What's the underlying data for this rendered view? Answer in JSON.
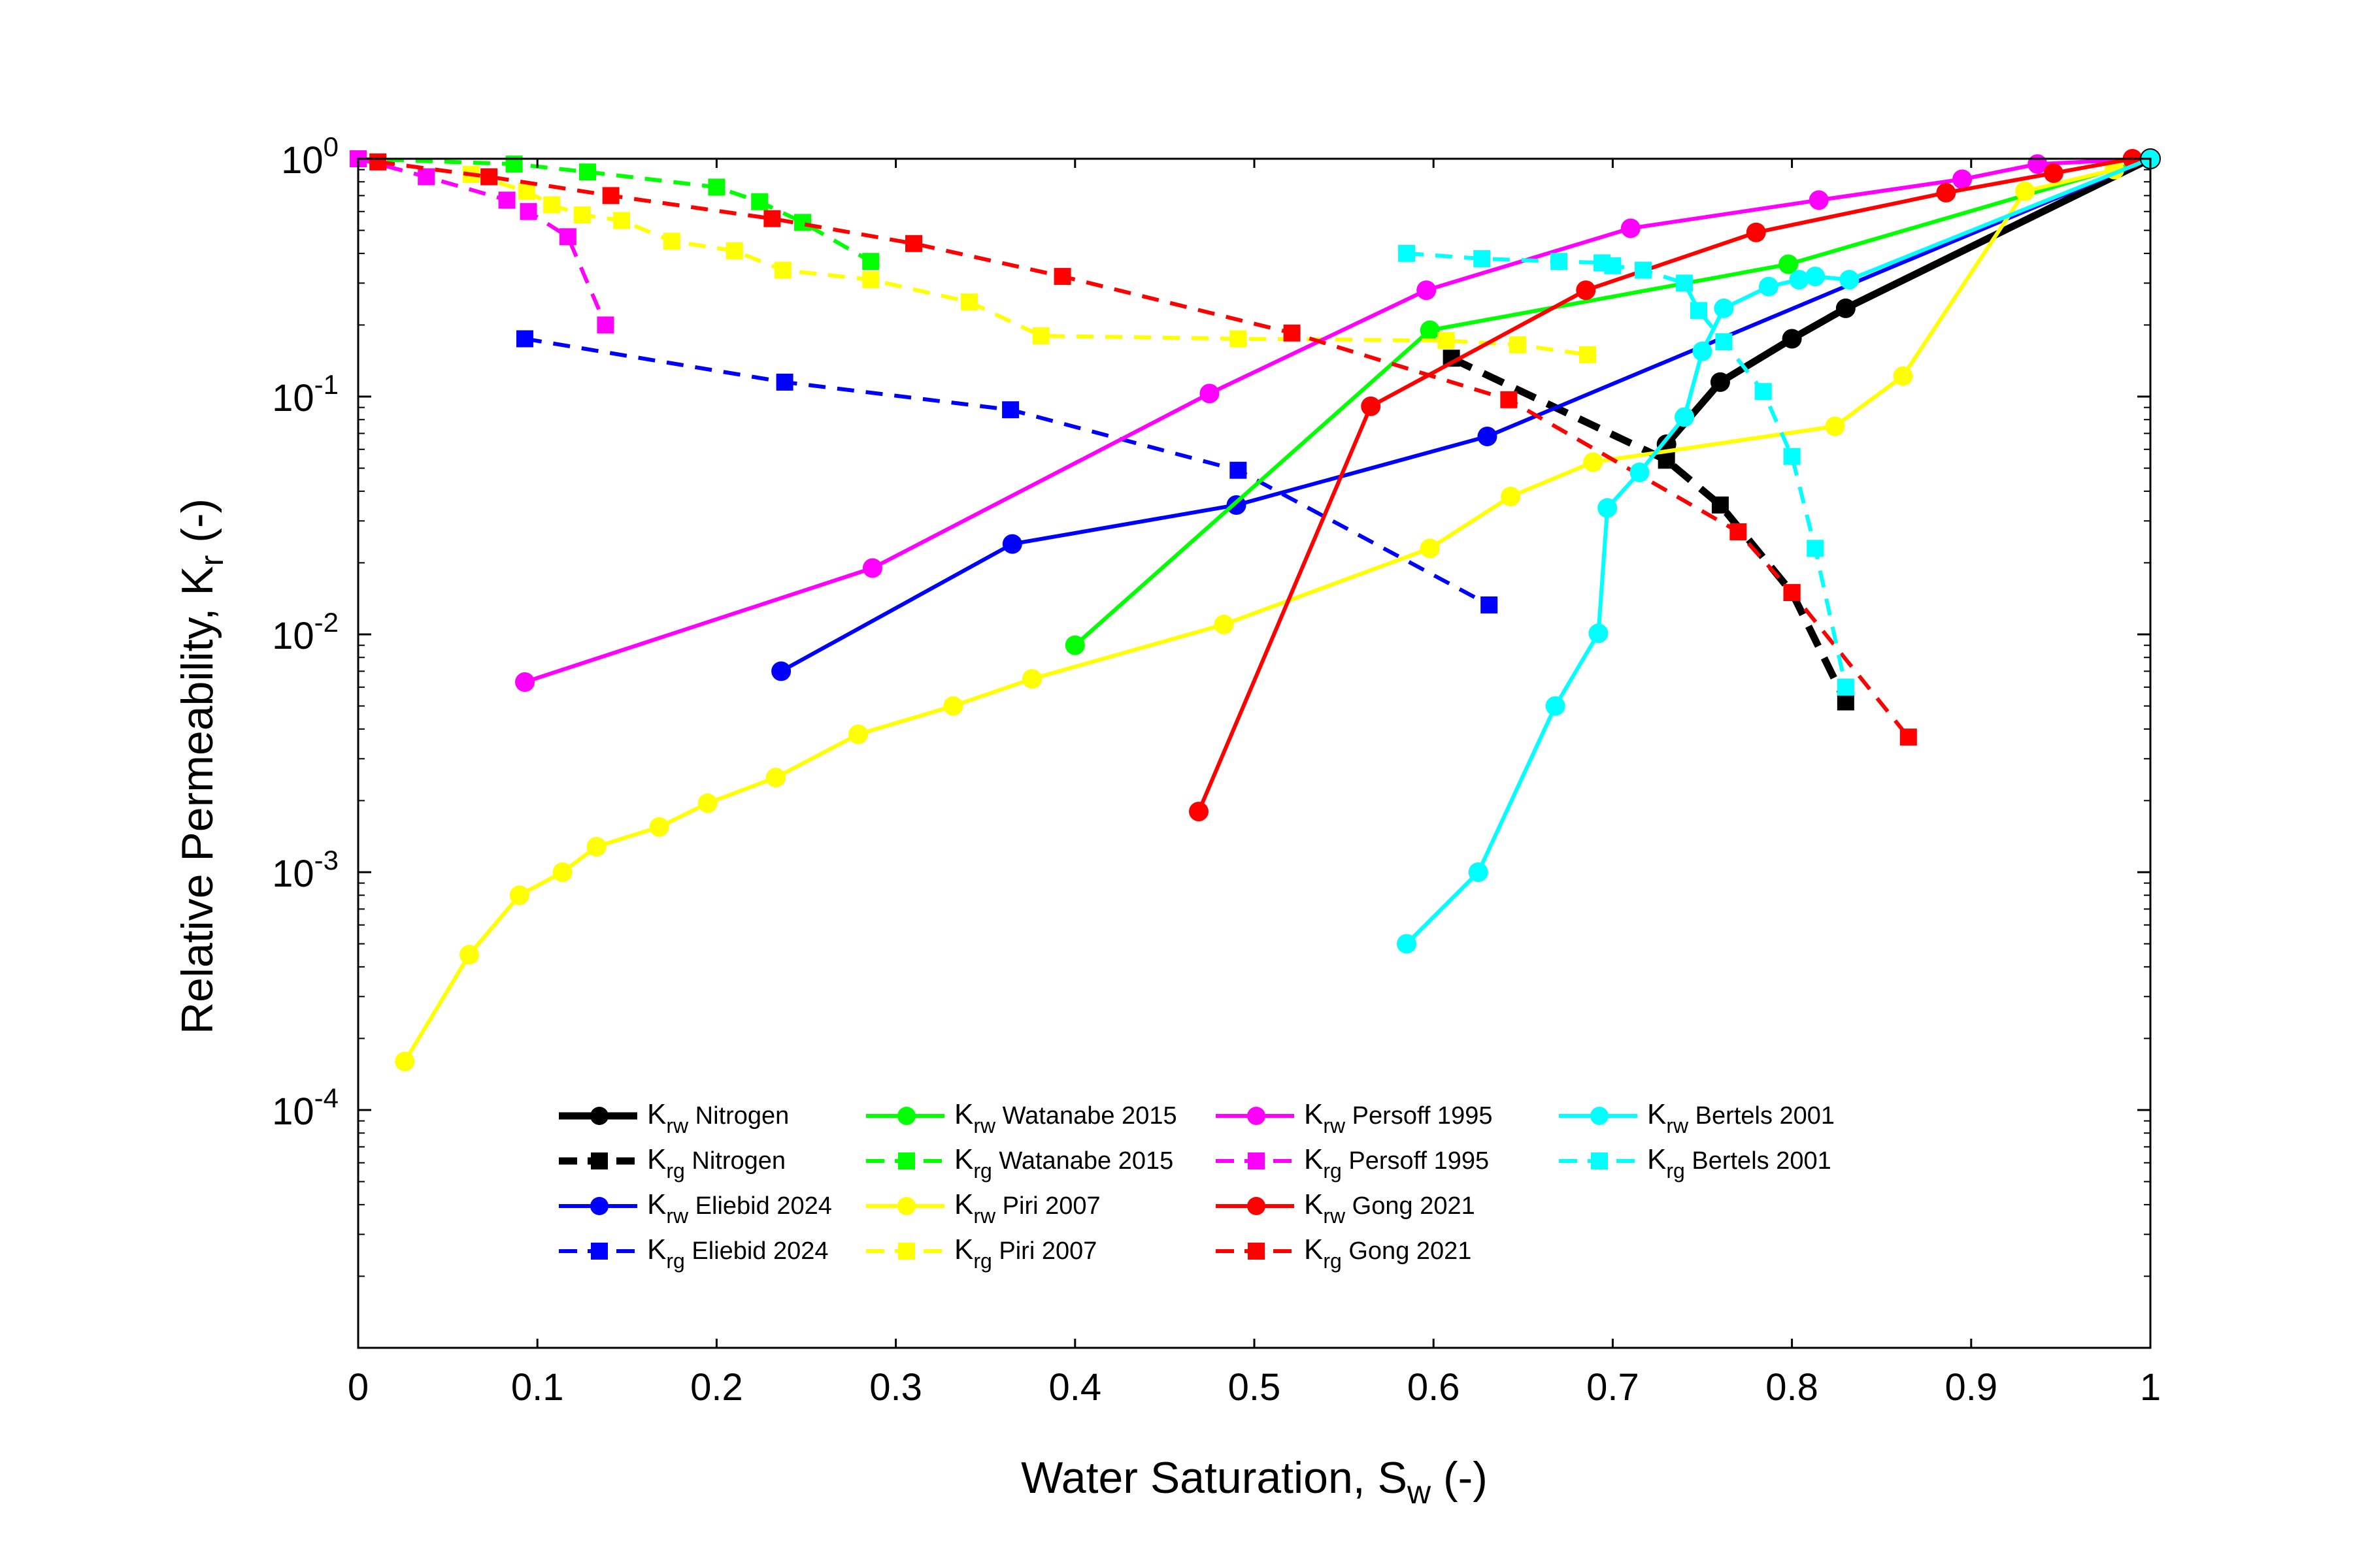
{
  "chart_data": {
    "type": "line",
    "title": "",
    "xlabel": {
      "main": "Water Saturation, S",
      "sub": "w",
      "suffix": " (-)"
    },
    "ylabel": {
      "main": "Relative Permeability, K",
      "sub": "r",
      "suffix": " (-)"
    },
    "xlim": [
      0,
      1
    ],
    "ylim": [
      1e-05,
      1
    ],
    "yscale": "log",
    "grid": false,
    "legend_position": "lower-center",
    "x_ticks": [
      {
        "value": 0,
        "label": "0"
      },
      {
        "value": 0.1,
        "label": "0.1"
      },
      {
        "value": 0.2,
        "label": "0.2"
      },
      {
        "value": 0.3,
        "label": "0.3"
      },
      {
        "value": 0.4,
        "label": "0.4"
      },
      {
        "value": 0.5,
        "label": "0.5"
      },
      {
        "value": 0.6,
        "label": "0.6"
      },
      {
        "value": 0.7,
        "label": "0.7"
      },
      {
        "value": 0.8,
        "label": "0.8"
      },
      {
        "value": 0.9,
        "label": "0.9"
      },
      {
        "value": 1,
        "label": "1"
      }
    ],
    "y_ticks": [
      {
        "value": 1,
        "base": "10",
        "exp": "0"
      },
      {
        "value": 0.1,
        "base": "10",
        "exp": "-1"
      },
      {
        "value": 0.01,
        "base": "10",
        "exp": "-2"
      },
      {
        "value": 0.001,
        "base": "10",
        "exp": "-3"
      },
      {
        "value": 0.0001,
        "base": "10",
        "exp": "-4"
      }
    ],
    "series": [
      {
        "name": "Krw Nitrogen",
        "legend": {
          "sym": "K",
          "sub": "rw",
          "label": "Nitrogen"
        },
        "color": "#000000",
        "dash": false,
        "marker": "circle",
        "thick": true,
        "points": [
          [
            0.73,
            0.063
          ],
          [
            0.76,
            0.115
          ],
          [
            0.8,
            0.175
          ],
          [
            0.83,
            0.235
          ],
          [
            1.0,
            1.0
          ]
        ]
      },
      {
        "name": "Krg Nitrogen",
        "legend": {
          "sym": "K",
          "sub": "rg",
          "label": "Nitrogen"
        },
        "color": "#000000",
        "dash": true,
        "marker": "square",
        "thick": true,
        "points": [
          [
            0.61,
            0.145
          ],
          [
            0.73,
            0.054
          ],
          [
            0.76,
            0.035
          ],
          [
            0.8,
            0.015
          ],
          [
            0.83,
            0.0052
          ]
        ]
      },
      {
        "name": "Krw Eliebid 2024",
        "legend": {
          "sym": "K",
          "sub": "rw",
          "label": "Eliebid 2024"
        },
        "color": "#0000FF",
        "dash": false,
        "marker": "circle",
        "thick": false,
        "points": [
          [
            0.236,
            0.007
          ],
          [
            0.365,
            0.024
          ],
          [
            0.49,
            0.035
          ],
          [
            0.63,
            0.068
          ],
          [
            1.0,
            1.0
          ]
        ]
      },
      {
        "name": "Krg Eliebid 2024",
        "legend": {
          "sym": "K",
          "sub": "rg",
          "label": "Eliebid 2024"
        },
        "color": "#0000FF",
        "dash": true,
        "marker": "square",
        "thick": false,
        "points": [
          [
            0.093,
            0.175
          ],
          [
            0.238,
            0.115
          ],
          [
            0.364,
            0.088
          ],
          [
            0.491,
            0.049
          ],
          [
            0.631,
            0.0133
          ]
        ]
      },
      {
        "name": "Krw Watanabe 2015",
        "legend": {
          "sym": "K",
          "sub": "rw",
          "label": "Watanabe 2015"
        },
        "color": "#00FF00",
        "dash": false,
        "marker": "circle",
        "thick": false,
        "points": [
          [
            0.4,
            0.009
          ],
          [
            0.598,
            0.19
          ],
          [
            0.798,
            0.36
          ],
          [
            1.0,
            1.0
          ]
        ]
      },
      {
        "name": "Krg Watanabe 2015",
        "legend": {
          "sym": "K",
          "sub": "rg",
          "label": "Watanabe 2015"
        },
        "color": "#00FF00",
        "dash": true,
        "marker": "square",
        "thick": false,
        "points": [
          [
            0.0,
            1.0
          ],
          [
            0.087,
            0.95
          ],
          [
            0.128,
            0.88
          ],
          [
            0.2,
            0.76
          ],
          [
            0.224,
            0.66
          ],
          [
            0.248,
            0.54
          ],
          [
            0.286,
            0.37
          ]
        ]
      },
      {
        "name": "Krw Piri 2007",
        "legend": {
          "sym": "K",
          "sub": "rw",
          "label": "Piri 2007"
        },
        "color": "#FFFF00",
        "dash": false,
        "marker": "circle",
        "thick": false,
        "points": [
          [
            0.026,
            0.00016
          ],
          [
            0.062,
            0.00045
          ],
          [
            0.09,
            0.0008
          ],
          [
            0.114,
            0.001
          ],
          [
            0.133,
            0.00128
          ],
          [
            0.168,
            0.00155
          ],
          [
            0.195,
            0.00195
          ],
          [
            0.233,
            0.0025
          ],
          [
            0.279,
            0.0038
          ],
          [
            0.332,
            0.005
          ],
          [
            0.376,
            0.0065
          ],
          [
            0.483,
            0.011
          ],
          [
            0.598,
            0.023
          ],
          [
            0.643,
            0.038
          ],
          [
            0.689,
            0.053
          ],
          [
            0.824,
            0.075
          ],
          [
            0.862,
            0.122
          ],
          [
            0.93,
            0.73
          ],
          [
            0.98,
            0.9
          ]
        ]
      },
      {
        "name": "Krg Piri 2007",
        "legend": {
          "sym": "K",
          "sub": "rg",
          "label": "Piri 2007"
        },
        "color": "#FFFF00",
        "dash": true,
        "marker": "square",
        "thick": false,
        "points": [
          [
            0.063,
            0.86
          ],
          [
            0.094,
            0.73
          ],
          [
            0.108,
            0.64
          ],
          [
            0.125,
            0.58
          ],
          [
            0.147,
            0.55
          ],
          [
            0.175,
            0.45
          ],
          [
            0.21,
            0.41
          ],
          [
            0.237,
            0.34
          ],
          [
            0.286,
            0.31
          ],
          [
            0.341,
            0.25
          ],
          [
            0.381,
            0.18
          ],
          [
            0.491,
            0.175
          ],
          [
            0.607,
            0.172
          ],
          [
            0.647,
            0.165
          ],
          [
            0.686,
            0.15
          ]
        ]
      },
      {
        "name": "Krw Persoff 1995",
        "legend": {
          "sym": "K",
          "sub": "rw",
          "label": "Persoff 1995"
        },
        "color": "#FF00FF",
        "dash": false,
        "marker": "circle",
        "thick": false,
        "points": [
          [
            0.093,
            0.0063
          ],
          [
            0.287,
            0.019
          ],
          [
            0.475,
            0.103
          ],
          [
            0.596,
            0.28
          ],
          [
            0.71,
            0.51
          ],
          [
            0.815,
            0.67
          ],
          [
            0.895,
            0.82
          ],
          [
            0.937,
            0.95
          ],
          [
            1.0,
            1.0
          ]
        ]
      },
      {
        "name": "Krg Persoff 1995",
        "legend": {
          "sym": "K",
          "sub": "rg",
          "label": "Persoff 1995"
        },
        "color": "#FF00FF",
        "dash": true,
        "marker": "square",
        "thick": false,
        "points": [
          [
            0.0,
            1.0
          ],
          [
            0.038,
            0.84
          ],
          [
            0.083,
            0.67
          ],
          [
            0.095,
            0.6
          ],
          [
            0.117,
            0.47
          ],
          [
            0.138,
            0.2
          ]
        ]
      },
      {
        "name": "Krw Gong 2021",
        "legend": {
          "sym": "K",
          "sub": "rw",
          "label": "Gong 2021"
        },
        "color": "#FF0000",
        "dash": false,
        "marker": "circle",
        "thick": false,
        "points": [
          [
            0.469,
            0.0018
          ],
          [
            0.565,
            0.091
          ],
          [
            0.685,
            0.28
          ],
          [
            0.78,
            0.49
          ],
          [
            0.886,
            0.72
          ],
          [
            0.946,
            0.87
          ],
          [
            0.99,
            1.0
          ]
        ]
      },
      {
        "name": "Krg Gong 2021",
        "legend": {
          "sym": "K",
          "sub": "rg",
          "label": "Gong 2021"
        },
        "color": "#FF0000",
        "dash": true,
        "marker": "square",
        "thick": false,
        "points": [
          [
            0.011,
            0.97
          ],
          [
            0.073,
            0.84
          ],
          [
            0.141,
            0.7
          ],
          [
            0.231,
            0.56
          ],
          [
            0.31,
            0.44
          ],
          [
            0.393,
            0.32
          ],
          [
            0.521,
            0.185
          ],
          [
            0.642,
            0.097
          ],
          [
            0.77,
            0.027
          ],
          [
            0.8,
            0.015
          ],
          [
            0.865,
            0.0037
          ]
        ]
      },
      {
        "name": "Krw Bertels 2001",
        "legend": {
          "sym": "K",
          "sub": "rw",
          "label": "Bertels 2001"
        },
        "color": "#00FFFF",
        "dash": false,
        "marker": "circle",
        "thick": false,
        "points": [
          [
            0.585,
            0.0005
          ],
          [
            0.625,
            0.001
          ],
          [
            0.668,
            0.005
          ],
          [
            0.692,
            0.0101
          ],
          [
            0.697,
            0.034
          ],
          [
            0.715,
            0.048
          ],
          [
            0.74,
            0.082
          ],
          [
            0.75,
            0.155
          ],
          [
            0.762,
            0.235
          ],
          [
            0.787,
            0.29
          ],
          [
            0.804,
            0.31
          ],
          [
            0.813,
            0.32
          ],
          [
            0.832,
            0.31
          ],
          [
            1.0,
            1.0
          ]
        ]
      },
      {
        "name": "Krg Bertels 2001",
        "legend": {
          "sym": "K",
          "sub": "rg",
          "label": "Bertels 2001"
        },
        "color": "#00FFFF",
        "dash": true,
        "marker": "square",
        "thick": false,
        "points": [
          [
            0.585,
            0.4
          ],
          [
            0.627,
            0.38
          ],
          [
            0.67,
            0.37
          ],
          [
            0.694,
            0.365
          ],
          [
            0.7,
            0.355
          ],
          [
            0.717,
            0.34
          ],
          [
            0.74,
            0.3
          ],
          [
            0.748,
            0.23
          ],
          [
            0.762,
            0.17
          ],
          [
            0.784,
            0.105
          ],
          [
            0.8,
            0.056
          ],
          [
            0.813,
            0.023
          ],
          [
            0.83,
            0.006
          ]
        ]
      }
    ]
  }
}
